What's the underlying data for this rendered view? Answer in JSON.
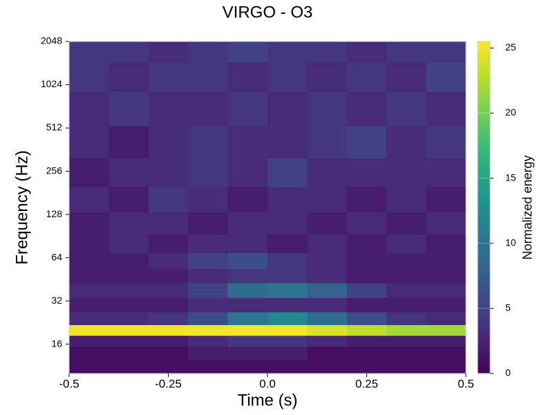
{
  "chart_data": {
    "type": "heatmap",
    "title": "VIRGO - O3",
    "x_label": "Time (s)",
    "y_label": "Frequency (Hz)",
    "colorbar_label": "Normalized energy",
    "colormap": "viridis",
    "y_log": true,
    "xlim": [
      -0.5,
      0.5
    ],
    "ylim": [
      10,
      2048
    ],
    "xticks": [
      -0.5,
      -0.25,
      {
        "value": 0,
        "label": "0.0"
      },
      0.25,
      0.5
    ],
    "yticks": [
      16,
      32,
      64,
      128,
      256,
      512,
      1024,
      2048
    ],
    "clim": [
      0,
      25.5
    ],
    "cticks": [
      0,
      5,
      10,
      15,
      20,
      25
    ],
    "x": [
      -0.45,
      -0.35,
      -0.25,
      -0.15,
      -0.05,
      0.05,
      0.15,
      0.25,
      0.35,
      0.45
    ],
    "y": [
      11,
      14,
      17,
      20,
      24,
      30,
      38,
      48,
      60,
      80,
      110,
      160,
      250,
      400,
      700,
      1200,
      1800
    ],
    "z": [
      [
        1,
        1,
        1,
        1,
        1,
        1,
        1,
        1,
        1,
        1
      ],
      [
        1,
        1,
        1,
        2,
        2,
        2,
        1,
        1,
        1,
        1
      ],
      [
        2,
        2,
        2,
        3,
        4,
        4,
        3,
        2,
        2,
        2
      ],
      [
        25,
        25,
        25,
        25,
        25,
        25,
        24,
        23,
        22,
        22
      ],
      [
        3,
        3,
        4,
        6,
        10,
        12,
        9,
        6,
        4,
        3
      ],
      [
        2,
        2,
        2,
        3,
        3,
        3,
        3,
        2,
        2,
        2
      ],
      [
        3,
        3,
        3,
        5,
        9,
        10,
        8,
        5,
        3,
        3
      ],
      [
        2,
        2,
        2,
        3,
        4,
        4,
        3,
        2,
        2,
        2
      ],
      [
        2,
        2,
        3,
        5,
        6,
        4,
        3,
        2,
        2,
        2
      ],
      [
        2,
        3,
        2,
        3,
        3,
        2,
        3,
        2,
        3,
        2
      ],
      [
        2,
        3,
        3,
        2,
        3,
        3,
        2,
        3,
        2,
        3
      ],
      [
        3,
        2,
        4,
        3,
        2,
        3,
        3,
        2,
        3,
        2
      ],
      [
        2,
        3,
        3,
        4,
        3,
        5,
        3,
        3,
        3,
        3
      ],
      [
        3,
        2,
        3,
        4,
        3,
        3,
        4,
        5,
        3,
        4
      ],
      [
        3,
        4,
        3,
        3,
        4,
        3,
        4,
        3,
        4,
        3
      ],
      [
        4,
        3,
        4,
        4,
        3,
        4,
        3,
        4,
        3,
        5
      ],
      [
        4,
        4,
        3,
        4,
        5,
        4,
        4,
        3,
        4,
        4
      ]
    ]
  }
}
